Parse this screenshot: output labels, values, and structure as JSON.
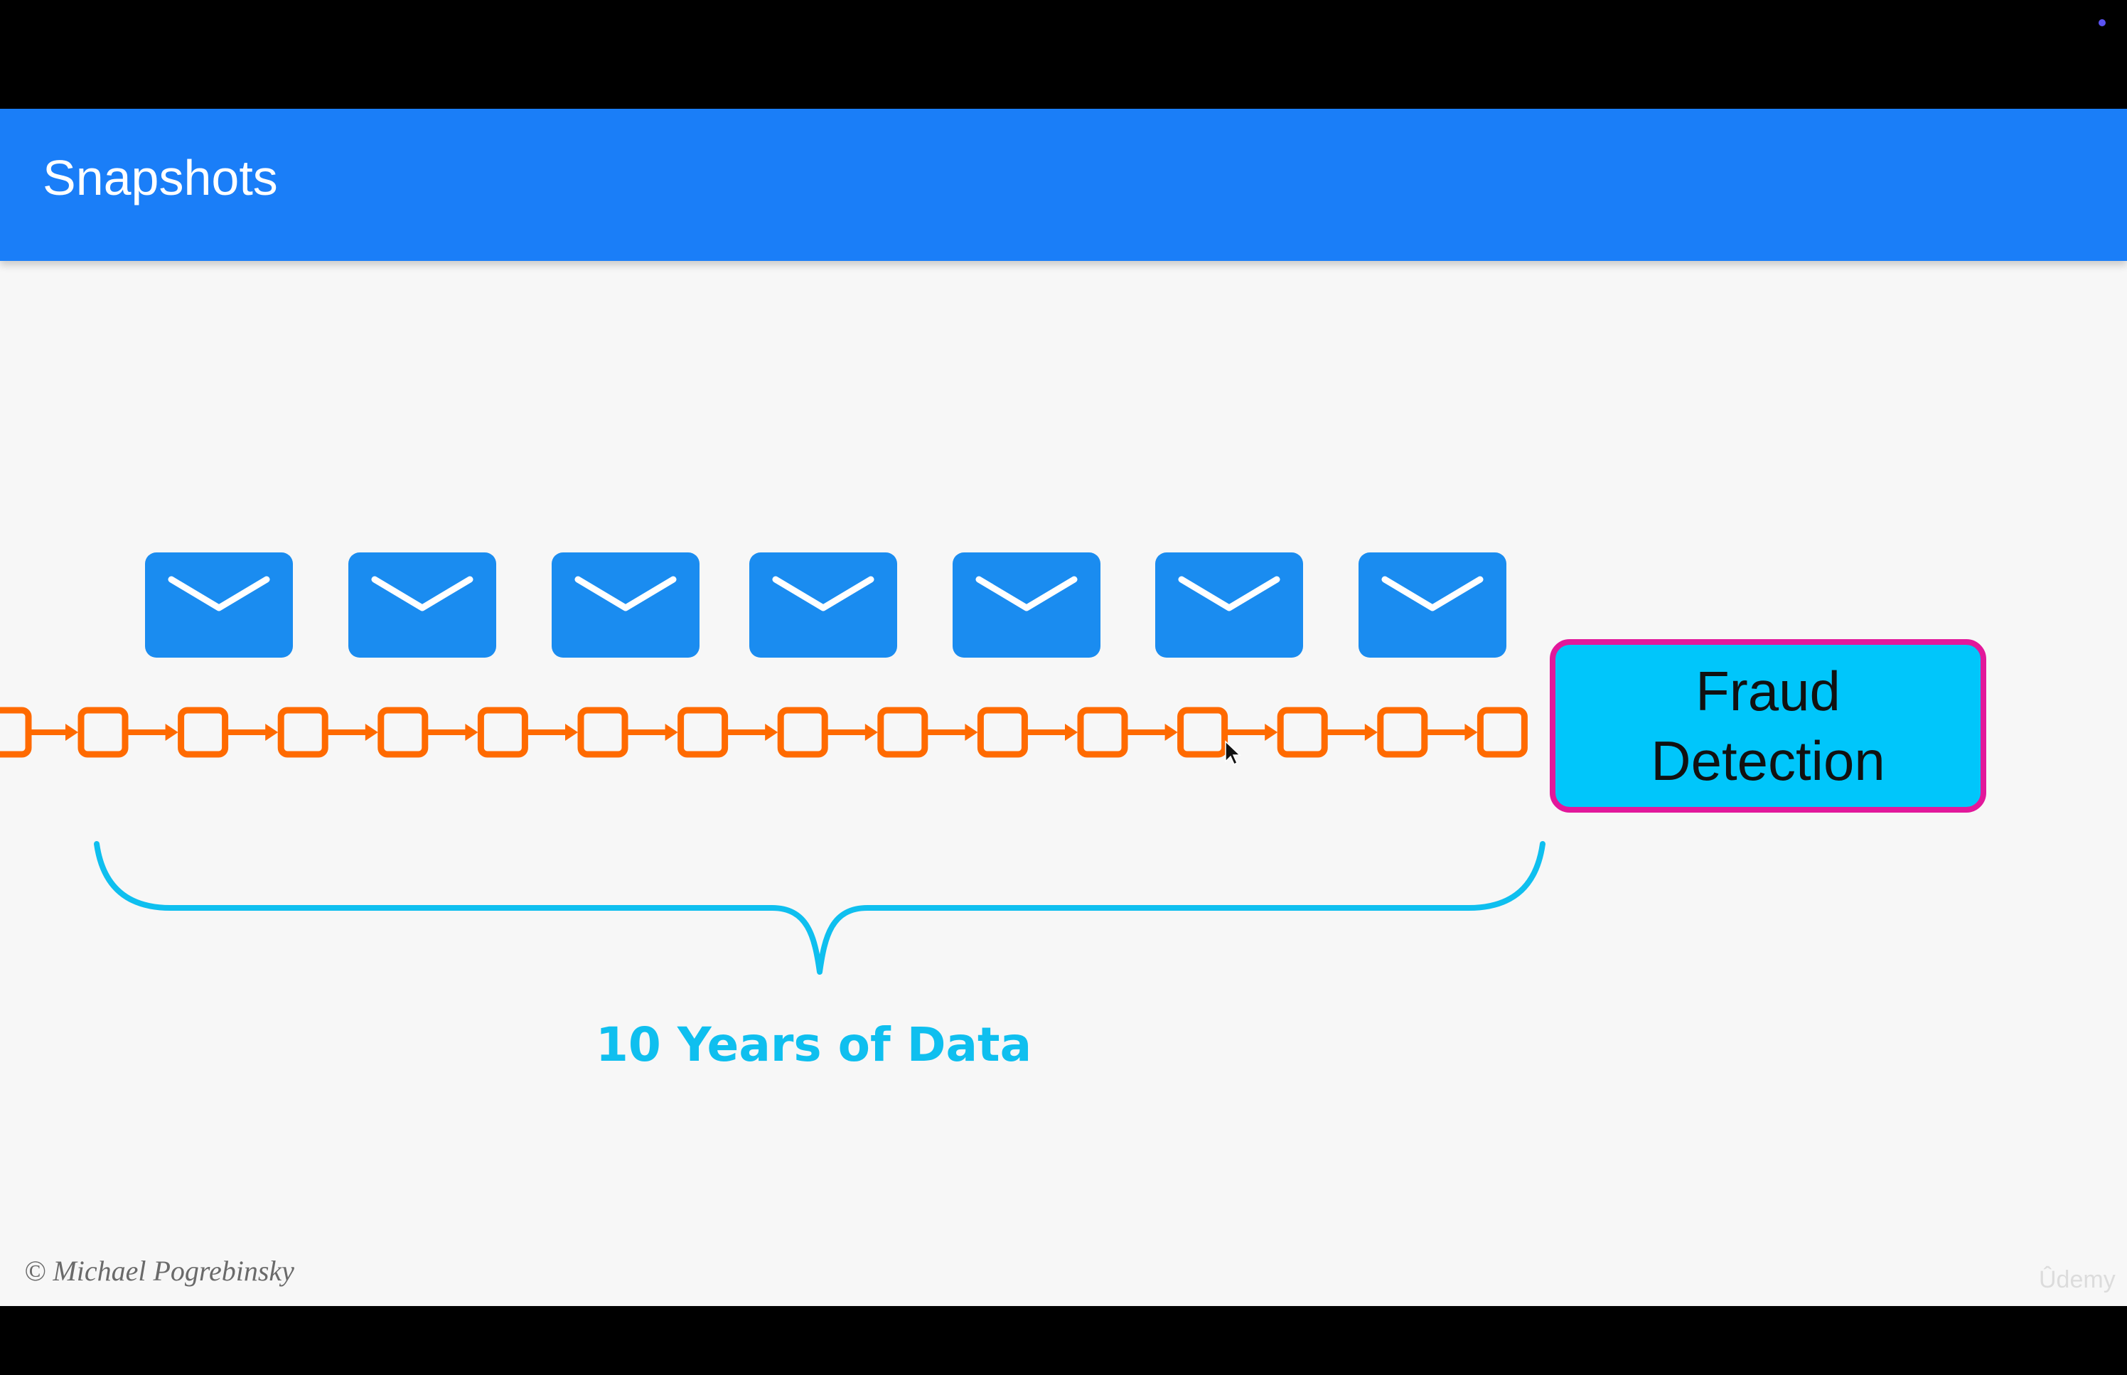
{
  "slide": {
    "title": "Snapshots"
  },
  "diagram": {
    "message_icon_name": "envelope-icon",
    "message_count": 7,
    "event_count": 16,
    "event_icon_name": "event-box-icon",
    "brace_label": "10 Years of Data",
    "destination_label": "Fraud Detection"
  },
  "footer": {
    "copyright": "© Michael Pogrebinsky",
    "watermark": "Ûdemy"
  },
  "colors": {
    "title_bar": "#1a7ef8",
    "envelope": "#1a8cf0",
    "event_chain": "#ff6a00",
    "brace": "#0fbfef",
    "fraud_fill": "#00c6fb",
    "fraud_border": "#e2189b"
  }
}
